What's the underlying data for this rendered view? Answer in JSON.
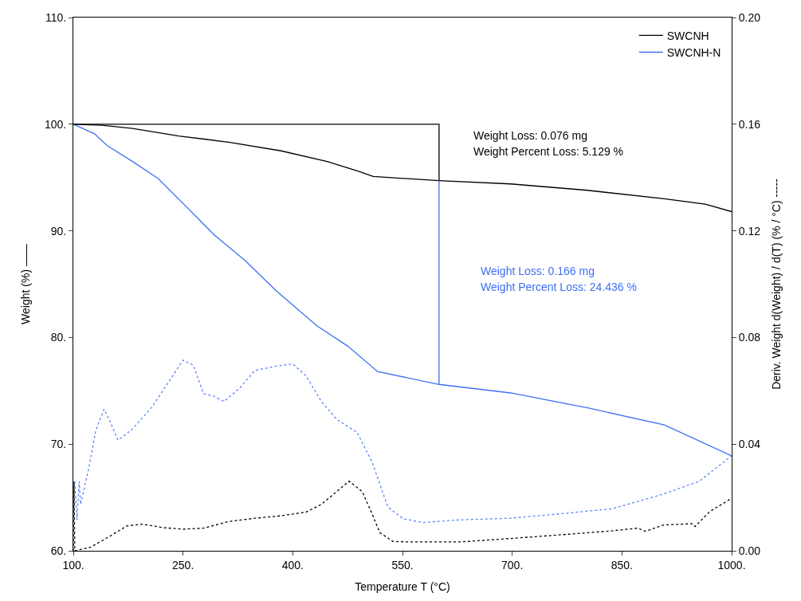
{
  "chart_data": {
    "type": "line",
    "xlabel": "Temperature T (°C)",
    "ylabel": "Weight (%) ——",
    "y2label": "Deriv. Weight d(Weight) / d(T) (% / °C) -----",
    "xlim": [
      100,
      1000
    ],
    "xticks": [
      {
        "value": 100,
        "label": "100."
      },
      {
        "value": 250,
        "label": "250."
      },
      {
        "value": 400,
        "label": "400."
      },
      {
        "value": 550,
        "label": "550."
      },
      {
        "value": 700,
        "label": "700."
      },
      {
        "value": 850,
        "label": "850."
      },
      {
        "value": 1000,
        "label": "1000."
      }
    ],
    "ylim": [
      60,
      110
    ],
    "yticks": [
      {
        "value": 60,
        "label": "60."
      },
      {
        "value": 70,
        "label": "70."
      },
      {
        "value": 80,
        "label": "80."
      },
      {
        "value": 90,
        "label": "90."
      },
      {
        "value": 100,
        "label": "100."
      },
      {
        "value": 110,
        "label": "110."
      }
    ],
    "y2lim": [
      0,
      0.2
    ],
    "y2ticks": [
      {
        "value": 0,
        "label": "0.00"
      },
      {
        "value": 0.04,
        "label": "0.04"
      },
      {
        "value": 0.08,
        "label": "0.08"
      },
      {
        "value": 0.12,
        "label": "0.12"
      },
      {
        "value": 0.16,
        "label": "0.16"
      },
      {
        "value": 0.2,
        "label": "0.20"
      }
    ],
    "legend": "top right",
    "marker": "none",
    "annotations": [
      "Weight Loss: 0.076 mg",
      "Weight Percent Loss: 5.129 %",
      "Weight Loss: 0.166 mg",
      "Weight Percent Loss: 24.436 %"
    ],
    "series": [
      {
        "name": "SWCNH",
        "color": "#000000",
        "line_style": "solid",
        "x": [
          100,
          139,
          181,
          244,
          314,
          384,
          447,
          489,
          510,
          600,
          698,
          803,
          908,
          964,
          1000
        ],
        "values": [
          100,
          99.9,
          99.6,
          98.9,
          98.3,
          97.5,
          96.5,
          95.6,
          95.1,
          94.7,
          94.4,
          93.8,
          93.0,
          92.5,
          91.8
        ]
      },
      {
        "name": "SWCNH-N",
        "color": "#3f6ff5",
        "line_style": "solid",
        "x": [
          100,
          129,
          146,
          181,
          216,
          251,
          293,
          335,
          377,
          433,
          475,
          516,
          600,
          698,
          803,
          908,
          1000
        ],
        "values": [
          100,
          99.1,
          98.0,
          96.5,
          94.9,
          92.5,
          89.6,
          87.2,
          84.4,
          81.1,
          79.2,
          76.8,
          75.6,
          74.8,
          73.4,
          71.8,
          68.9
        ]
      },
      {
        "color": "#000000",
        "line_style": "dotted",
        "axis": "y2",
        "x": [
          100,
          101,
          102,
          124,
          152,
          173,
          194,
          222,
          250,
          278,
          313,
          348,
          383,
          418,
          439,
          460,
          477,
          495,
          509,
          519,
          537,
          558,
          628,
          697,
          767,
          837,
          872,
          882,
          907,
          935,
          946,
          950,
          970,
          1000
        ],
        "values": [
          0,
          0.026,
          0,
          0.0014,
          0.0058,
          0.0093,
          0.01,
          0.0087,
          0.0081,
          0.0085,
          0.011,
          0.0122,
          0.0131,
          0.0145,
          0.0174,
          0.0222,
          0.0261,
          0.0222,
          0.0135,
          0.0068,
          0.0035,
          0.0033,
          0.0033,
          0.0046,
          0.006,
          0.0075,
          0.0085,
          0.0073,
          0.0097,
          0.01,
          0.0102,
          0.0091,
          0.0147,
          0.0197
        ]
      },
      {
        "color": "#5b86f7",
        "line_style": "dotted",
        "axis": "y2",
        "x": [
          102,
          105,
          108,
          110,
          121,
          131,
          142,
          149,
          161,
          180,
          208,
          236,
          250,
          264,
          278,
          292,
          306,
          327,
          348,
          376,
          400,
          418,
          439,
          460,
          488,
          509,
          530,
          551,
          579,
          628,
          697,
          767,
          837,
          907,
          956,
          1000
        ],
        "values": [
          0.026,
          0.0116,
          0.026,
          0.0174,
          0.0309,
          0.0454,
          0.0531,
          0.0493,
          0.0415,
          0.0454,
          0.0541,
          0.0657,
          0.0715,
          0.0696,
          0.0589,
          0.058,
          0.056,
          0.0609,
          0.0676,
          0.0692,
          0.0701,
          0.0657,
          0.056,
          0.0493,
          0.0444,
          0.0329,
          0.0164,
          0.012,
          0.0106,
          0.0116,
          0.0122,
          0.0139,
          0.0158,
          0.0213,
          0.0261,
          0.0357
        ]
      },
      {
        "color": "#000000",
        "line_style": "solid",
        "x": [
          100,
          600,
          600
        ],
        "values": [
          100,
          100,
          94.7
        ]
      },
      {
        "color": "#3f6ff5",
        "line_style": "solid",
        "x": [
          600,
          600
        ],
        "values": [
          94.7,
          75.6
        ]
      }
    ]
  }
}
